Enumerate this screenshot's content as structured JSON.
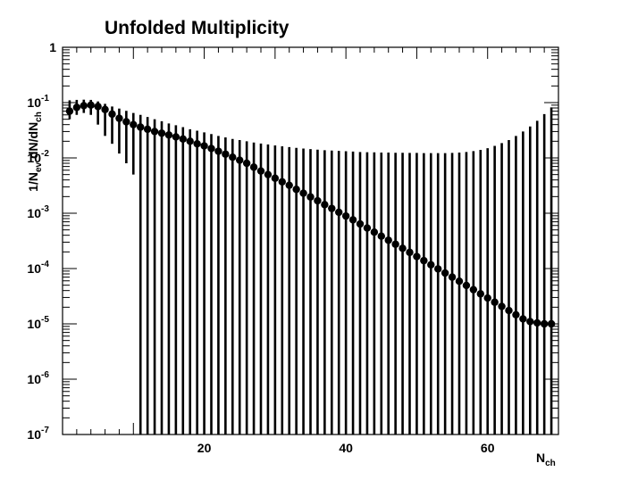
{
  "chart_data": {
    "type": "scatter",
    "title": "Unfolded Multiplicity",
    "xlabel": {
      "main": "N",
      "sub": "ch"
    },
    "ylabel": "1/N_ev dN/dN_ch",
    "ylabel_parts": {
      "a": "1/N",
      "a_sub": "ev",
      "b": " dN/dN",
      "b_sub": "ch"
    },
    "xscale": "linear",
    "yscale": "log",
    "xlim": [
      0,
      70
    ],
    "ylim": [
      1e-07,
      1
    ],
    "x_ticks": [
      {
        "value": 20,
        "label": "20"
      },
      {
        "value": 40,
        "label": "40"
      },
      {
        "value": 60,
        "label": "60"
      }
    ],
    "y_ticks": [
      {
        "value": 1,
        "base": "1",
        "exp": ""
      },
      {
        "value": 0.1,
        "base": "10",
        "exp": "-1"
      },
      {
        "value": 0.01,
        "base": "10",
        "exp": "-2"
      },
      {
        "value": 0.001,
        "base": "10",
        "exp": "-3"
      },
      {
        "value": 0.0001,
        "base": "10",
        "exp": "-4"
      },
      {
        "value": 1e-05,
        "base": "10",
        "exp": "-5"
      },
      {
        "value": 1e-06,
        "base": "10",
        "exp": "-6"
      },
      {
        "value": 1e-07,
        "base": "10",
        "exp": "-7"
      }
    ],
    "grid": false,
    "legend": "none",
    "series": [
      {
        "x": [
          1,
          2,
          3,
          4,
          5,
          6,
          7,
          8,
          9,
          10,
          11,
          12,
          13,
          14,
          15,
          16,
          17,
          18,
          19,
          20,
          21,
          22,
          23,
          24,
          25,
          26,
          27,
          28,
          29,
          30,
          31,
          32,
          33,
          34,
          35,
          36,
          37,
          38,
          39,
          40,
          41,
          42,
          43,
          44,
          45,
          46,
          47,
          48,
          49,
          50,
          51,
          52,
          53,
          54,
          55,
          56,
          57,
          58,
          59,
          60,
          61,
          62,
          63,
          64,
          65,
          66,
          67,
          68,
          69
        ],
        "y": [
          0.07,
          0.082,
          0.088,
          0.09,
          0.085,
          0.075,
          0.062,
          0.052,
          0.045,
          0.04,
          0.036,
          0.033,
          0.03,
          0.028,
          0.026,
          0.024,
          0.022,
          0.02,
          0.018,
          0.0165,
          0.0148,
          0.0132,
          0.0117,
          0.0103,
          0.0091,
          0.008,
          0.0068,
          0.0058,
          0.005,
          0.0043,
          0.0037,
          0.0032,
          0.0027,
          0.0023,
          0.00197,
          0.00168,
          0.00143,
          0.00122,
          0.00104,
          0.00089,
          0.00076,
          0.00064,
          0.00054,
          0.000455,
          0.000385,
          0.000325,
          0.000275,
          0.000232,
          0.000196,
          0.000165,
          0.000139,
          0.000117,
          9.85e-05,
          8.3e-05,
          7e-05,
          5.9e-05,
          4.95e-05,
          4.15e-05,
          3.49e-05,
          2.93e-05,
          2.46e-05,
          2.07e-05,
          1.74e-05,
          1.46e-05,
          1.23e-05,
          1.1e-05,
          1.04e-05,
          1e-05,
          1e-05
        ],
        "err_hi": [
          0.11,
          0.112,
          0.113,
          0.112,
          0.105,
          0.095,
          0.085,
          0.078,
          0.071,
          0.065,
          0.06,
          0.055,
          0.05,
          0.046,
          0.042,
          0.039,
          0.036,
          0.033,
          0.031,
          0.029,
          0.027,
          0.025,
          0.0235,
          0.022,
          0.021,
          0.02,
          0.019,
          0.0182,
          0.0175,
          0.0168,
          0.0162,
          0.0157,
          0.0152,
          0.0148,
          0.0144,
          0.0141,
          0.0138,
          0.0136,
          0.0134,
          0.0132,
          0.013,
          0.0128,
          0.0127,
          0.0126,
          0.0125,
          0.0125,
          0.0124,
          0.0124,
          0.0123,
          0.0123,
          0.0122,
          0.0122,
          0.0122,
          0.0122,
          0.0123,
          0.0125,
          0.0128,
          0.0133,
          0.014,
          0.015,
          0.0165,
          0.0185,
          0.021,
          0.025,
          0.03,
          0.037,
          0.047,
          0.062,
          0.082
        ],
        "err_lo": [
          0.05,
          0.06,
          0.065,
          0.06,
          0.04,
          0.025,
          0.018,
          0.012,
          0.008,
          0.005,
          1e-07,
          1e-07,
          1e-07,
          1e-07,
          1e-07,
          1e-07,
          1e-07,
          1e-07,
          1e-07,
          1e-07,
          1e-07,
          1e-07,
          1e-07,
          1e-07,
          1e-07,
          1e-07,
          1e-07,
          1e-07,
          1e-07,
          1e-07,
          1e-07,
          1e-07,
          1e-07,
          1e-07,
          1e-07,
          1e-07,
          1e-07,
          1e-07,
          1e-07,
          1e-07,
          1e-07,
          1e-07,
          1e-07,
          1e-07,
          1e-07,
          1e-07,
          1e-07,
          1e-07,
          1e-07,
          1e-07,
          1e-07,
          1e-07,
          1e-07,
          1e-07,
          1e-07,
          1e-07,
          1e-07,
          1e-07,
          1e-07,
          1e-07,
          1e-07,
          1e-07,
          1e-07,
          1e-07,
          1e-07,
          1e-07,
          1e-07,
          1e-07,
          1e-07
        ]
      }
    ],
    "colors": {
      "marker": "#000000",
      "errorbar": "#000000",
      "frame": "#000000"
    }
  }
}
